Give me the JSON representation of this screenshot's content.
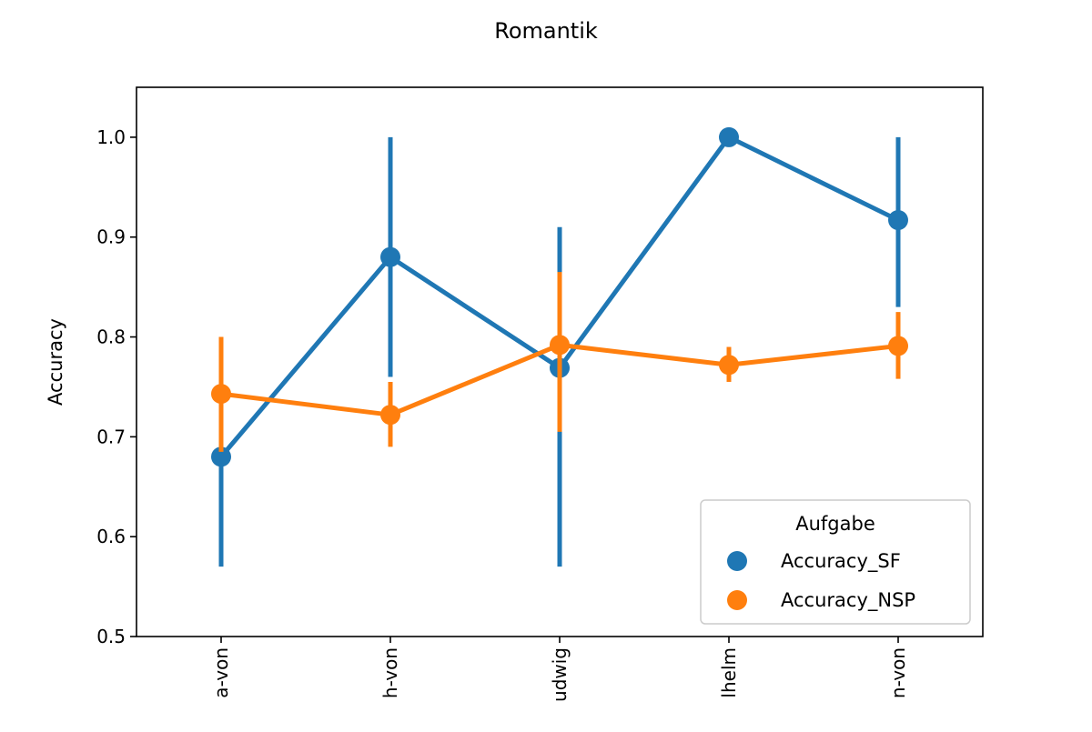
{
  "chart_data": {
    "type": "line",
    "title": "Romantik",
    "xlabel": "",
    "ylabel": "Accuracy",
    "ylim": [
      0.5,
      1.05
    ],
    "yticks": [
      "0.5",
      "0.6",
      "0.7",
      "0.8",
      "0.9",
      "1.0"
    ],
    "categories": [
      "a-von",
      "h-von",
      "udwig",
      "lhelm",
      "n-von"
    ],
    "grid": false,
    "legend": {
      "title": "Aufgabe",
      "placement": "lower-right"
    },
    "series": [
      {
        "name": "Accuracy_SF",
        "color": "#1f77b4",
        "values": [
          0.68,
          0.88,
          0.769,
          1.0,
          0.917
        ],
        "err_low": [
          0.57,
          0.76,
          0.57,
          1.0,
          0.83
        ],
        "err_high": [
          0.79,
          1.0,
          0.91,
          1.0,
          1.0
        ]
      },
      {
        "name": "Accuracy_NSP",
        "color": "#ff7f0e",
        "values": [
          0.743,
          0.722,
          0.792,
          0.772,
          0.791
        ],
        "err_low": [
          0.685,
          0.69,
          0.705,
          0.755,
          0.758
        ],
        "err_high": [
          0.8,
          0.755,
          0.865,
          0.79,
          0.825
        ]
      }
    ]
  }
}
